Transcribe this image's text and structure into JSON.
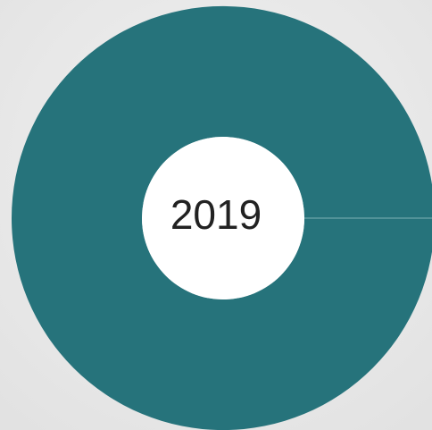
{
  "chart_data": {
    "type": "donut",
    "center_label": "2019",
    "values": [
      100
    ],
    "colors": [
      "#26737b"
    ]
  }
}
